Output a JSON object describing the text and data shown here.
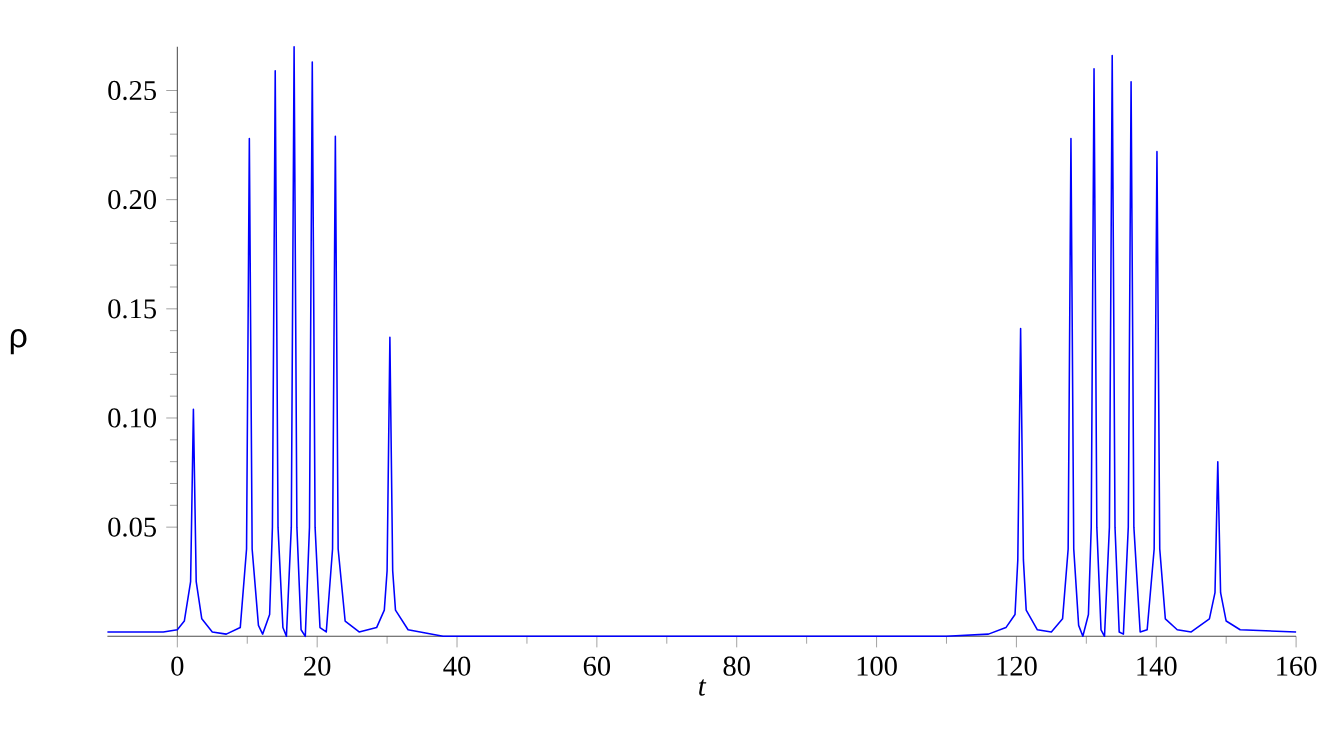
{
  "chart_data": {
    "type": "line",
    "xlabel": "t",
    "ylabel": "ρ",
    "xlim": [
      -10,
      160
    ],
    "ylim": [
      0,
      0.27
    ],
    "xticks": [
      0,
      20,
      40,
      60,
      80,
      100,
      120,
      140,
      160
    ],
    "yticks": [
      0.05,
      {
        "value": 0.1,
        "label": "0.10"
      },
      0.15,
      {
        "value": 0.2,
        "label": "0.20"
      },
      0.25
    ],
    "grid": false,
    "marker": "none",
    "line_style": "solid",
    "series": [
      {
        "color": "#0000ff",
        "x": [
          -10,
          -2,
          0,
          1,
          1.9,
          2.3,
          2.7,
          3.5,
          5,
          7,
          9,
          9.9,
          10.3,
          10.7,
          11.6,
          12.2,
          13.2,
          13.6,
          14.0,
          14.4,
          15.1,
          15.6,
          16.3,
          16.7,
          17.1,
          17.7,
          18.3,
          18.9,
          19.3,
          19.7,
          20.4,
          21.3,
          22.2,
          22.6,
          23.0,
          24,
          26,
          28.5,
          29.6,
          30.0,
          30.4,
          30.8,
          31.2,
          33,
          38,
          50,
          80,
          110,
          116,
          118.5,
          119.8,
          120.2,
          120.6,
          121,
          121.4,
          123,
          125,
          126.6,
          127.4,
          127.8,
          128.2,
          128.9,
          129.5,
          130.3,
          130.7,
          131.1,
          131.5,
          132.1,
          132.6,
          133.3,
          133.7,
          134.1,
          134.7,
          135.3,
          136.0,
          136.4,
          136.8,
          137.7,
          138.7,
          139.7,
          140.1,
          140.5,
          141.3,
          143,
          145,
          147.6,
          148.4,
          148.8,
          149.2,
          150,
          152,
          160
        ],
        "values": [
          0.002,
          0.002,
          0.003,
          0.007,
          0.025,
          0.104,
          0.025,
          0.008,
          0.002,
          0.001,
          0.004,
          0.04,
          0.228,
          0.04,
          0.005,
          0.001,
          0.01,
          0.05,
          0.259,
          0.05,
          0.004,
          0,
          0.05,
          0.27,
          0.05,
          0.003,
          0,
          0.05,
          0.263,
          0.05,
          0.004,
          0.002,
          0.04,
          0.229,
          0.04,
          0.007,
          0.002,
          0.004,
          0.012,
          0.03,
          0.137,
          0.03,
          0.012,
          0.003,
          0,
          0,
          0,
          0,
          0.001,
          0.004,
          0.01,
          0.035,
          0.141,
          0.035,
          0.012,
          0.003,
          0.002,
          0.008,
          0.04,
          0.228,
          0.04,
          0.005,
          0,
          0.01,
          0.05,
          0.26,
          0.05,
          0.003,
          0,
          0.05,
          0.266,
          0.05,
          0.002,
          0.001,
          0.05,
          0.254,
          0.05,
          0.002,
          0.003,
          0.04,
          0.222,
          0.04,
          0.008,
          0.003,
          0.002,
          0.008,
          0.02,
          0.08,
          0.02,
          0.007,
          0.003,
          0.002
        ]
      }
    ]
  }
}
